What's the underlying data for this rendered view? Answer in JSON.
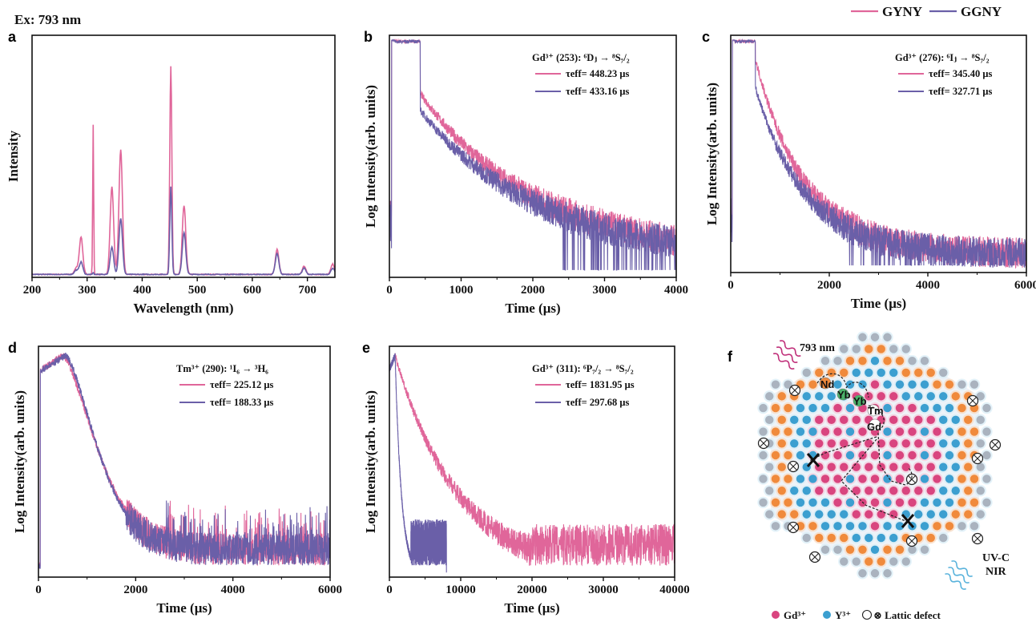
{
  "figure": {
    "excitation_label": "Ex: 793 nm",
    "legend": [
      {
        "name": "GYNY",
        "color": "#e0669a"
      },
      {
        "name": "GGNY",
        "color": "#6a5fa8"
      }
    ],
    "colors": {
      "gyny": "#e0669a",
      "ggny": "#6a5fa8"
    }
  },
  "chart_data": [
    {
      "id": "a",
      "panel_label": "a",
      "type": "line",
      "xlabel": "Wavelength (nm)",
      "ylabel": "Intensity",
      "xlim": [
        200,
        750
      ],
      "xticks": [
        "200",
        "300",
        "400",
        "500",
        "600",
        "700"
      ],
      "peaks_nm": [
        280,
        289,
        311,
        345,
        361,
        452,
        476,
        645,
        694,
        746
      ],
      "series": [
        {
          "name": "GYNY",
          "peak_heights": [
            0.03,
            0.18,
            0.72,
            0.42,
            0.6,
            1.0,
            0.33,
            0.12,
            0.04,
            0.05
          ]
        },
        {
          "name": "GGNY",
          "peak_heights": [
            0.02,
            0.06,
            0.01,
            0.13,
            0.27,
            0.42,
            0.2,
            0.1,
            0.03,
            0.03
          ]
        }
      ]
    },
    {
      "id": "b",
      "panel_label": "b",
      "type": "line",
      "xlabel": "Time (μs)",
      "ylabel": "Log Intensity(arb. units)",
      "xlim": [
        0,
        4000
      ],
      "xticks": [
        "0",
        "1000",
        "2000",
        "3000",
        "4000"
      ],
      "annotation": {
        "title": "Gd³⁺ (253): ⁶Dⱼ → ⁸S₇/₂",
        "lines": [
          "τeff= 448.23 μs",
          "τeff= 433.16 μs"
        ]
      },
      "series": [
        {
          "name": "GYNY",
          "pulse_end": 430,
          "drop_to": 0.68,
          "tau": 448.23
        },
        {
          "name": "GGNY",
          "pulse_end": 430,
          "drop_to": 0.61,
          "tau": 433.16
        }
      ]
    },
    {
      "id": "c",
      "panel_label": "c",
      "type": "line",
      "xlabel": "Time (μs)",
      "ylabel": "Log Intensity(arb. units)",
      "xlim": [
        0,
        6000
      ],
      "xticks": [
        "0",
        "2000",
        "4000",
        "6000"
      ],
      "annotation": {
        "title": "Gd³⁺ (276): ⁶Iⱼ → ⁸S₇/₂",
        "lines": [
          "τeff= 345.40 μs",
          "τeff= 327.71 μs"
        ]
      },
      "series": [
        {
          "name": "GYNY",
          "pulse_end": 500,
          "drop_to": 0.82,
          "tau": 345.4
        },
        {
          "name": "GGNY",
          "pulse_end": 500,
          "drop_to": 0.7,
          "tau": 327.71
        }
      ]
    },
    {
      "id": "d",
      "panel_label": "d",
      "type": "line",
      "xlabel": "Time (μs)",
      "ylabel": "Log Intensity(arb. units)",
      "xlim": [
        0,
        6000
      ],
      "xticks": [
        "0",
        "2000",
        "4000",
        "6000"
      ],
      "annotation": {
        "title": "Tm³⁺ (290): ¹I₆ → ³H₆",
        "lines": [
          "τeff= 225.12 μs",
          "τeff= 188.33 μs"
        ]
      },
      "series": [
        {
          "name": "GYNY",
          "rise_peak": 500,
          "tau": 225.12
        },
        {
          "name": "GGNY",
          "rise_peak": 560,
          "tau": 188.33
        }
      ]
    },
    {
      "id": "e",
      "panel_label": "e",
      "type": "line",
      "xlabel": "Time (μs)",
      "ylabel": "Log Intensity(arb. units)",
      "xlim": [
        0,
        40000
      ],
      "xticks": [
        "0",
        "10000",
        "20000",
        "30000",
        "40000"
      ],
      "annotation": {
        "title": "Gd³⁺ (311): ⁶P₇/₂ → ⁸S₇/₂",
        "lines": [
          "τeff= 1831.95 μs",
          "τeff= 297.68 μs"
        ]
      },
      "series": [
        {
          "name": "GYNY",
          "end": 40000,
          "tau": 1831.95
        },
        {
          "name": "GGNY",
          "end": 8000,
          "tau": 297.68
        }
      ]
    }
  ],
  "diagram": {
    "panel_label": "f",
    "excitation": "793 nm",
    "emission_lines": [
      "UV-C",
      "NIR"
    ],
    "ions": [
      "Nd",
      "Yb",
      "Yb",
      "Tm",
      "Gd"
    ],
    "legend": [
      {
        "label": "Gd³⁺",
        "color": "#d9457f"
      },
      {
        "label": "Y³⁺",
        "color": "#3c9fd0"
      },
      {
        "label": "⊗ Lattic defect",
        "color": "#333333"
      }
    ]
  }
}
